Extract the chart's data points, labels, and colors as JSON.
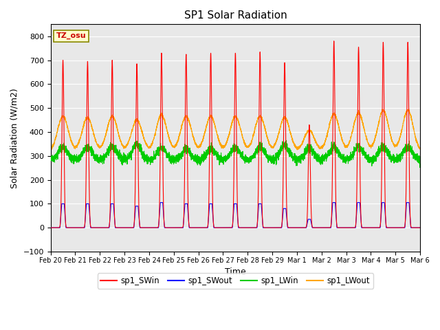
{
  "title": "SP1 Solar Radiation",
  "ylabel": "Solar Radiation (W/m2)",
  "xlabel": "Time",
  "ylim": [
    -100,
    850
  ],
  "yticks": [
    -100,
    0,
    100,
    200,
    300,
    400,
    500,
    600,
    700,
    800
  ],
  "tz_label": "TZ_osu",
  "colors": {
    "sp1_SWin": "#FF0000",
    "sp1_SWout": "#0000FF",
    "sp1_LWin": "#00CC00",
    "sp1_LWout": "#FFA500"
  },
  "bg_color": "#E8E8E8",
  "legend_labels": [
    "sp1_SWin",
    "sp1_SWout",
    "sp1_LWin",
    "sp1_LWout"
  ],
  "n_days": 15,
  "points_per_day": 288,
  "tick_labels": [
    "Feb 20",
    "Feb 21",
    "Feb 22",
    "Feb 23",
    "Feb 24",
    "Feb 25",
    "Feb 26",
    "Feb 27",
    "Feb 28",
    "Feb 29",
    "Mar 1",
    "Mar 2",
    "Mar 3",
    "Mar 4",
    "Mar 5",
    "Mar 6"
  ],
  "day_peaks_SWin": [
    700,
    695,
    700,
    685,
    730,
    725,
    730,
    730,
    735,
    690,
    430,
    780,
    755,
    775,
    775
  ],
  "day_peaks_SWout": [
    100,
    100,
    100,
    90,
    105,
    100,
    100,
    100,
    100,
    80,
    35,
    105,
    105,
    105,
    105
  ],
  "day_peaks_LWout": [
    465,
    460,
    465,
    450,
    470,
    465,
    465,
    465,
    465,
    460,
    405,
    475,
    480,
    490,
    490
  ],
  "LWout_night": 315,
  "LWin_base": 283
}
